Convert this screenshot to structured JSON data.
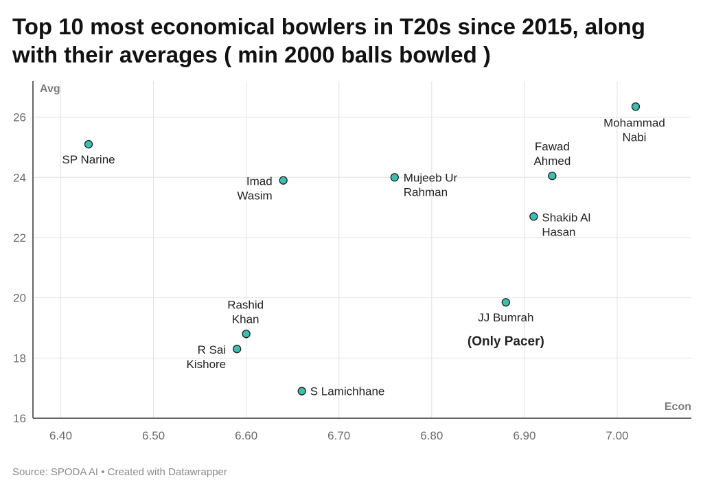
{
  "header": {
    "title": "Top 10 most economical bowlers in T20s since 2015, along with their averages ( min 2000 balls bowled )"
  },
  "footer": {
    "source": "Source: SPODA AI • Created with Datawrapper"
  },
  "chart_data": {
    "type": "scatter",
    "xlabel": "Econ",
    "ylabel": "Avg",
    "xlim": [
      6.37,
      7.08
    ],
    "ylim": [
      16,
      27.2
    ],
    "xticks": [
      "6.40",
      "6.50",
      "6.60",
      "6.70",
      "6.80",
      "6.90",
      "7.00"
    ],
    "yticks": [
      "16",
      "18",
      "20",
      "22",
      "24",
      "26"
    ],
    "grid": true,
    "marker_color": "#3cbfb0",
    "points": [
      {
        "label": "SP Narine",
        "x": 6.43,
        "y": 25.1
      },
      {
        "label": "Imad Wasim",
        "x": 6.64,
        "y": 23.9
      },
      {
        "label": "Mujeeb Ur Rahman",
        "x": 6.76,
        "y": 24.0
      },
      {
        "label": "Fawad Ahmed",
        "x": 6.93,
        "y": 24.05
      },
      {
        "label": "Shakib Al Hasan",
        "x": 6.91,
        "y": 22.7
      },
      {
        "label": "Mohammad Nabi",
        "x": 7.02,
        "y": 26.35
      },
      {
        "label": "Rashid Khan",
        "x": 6.6,
        "y": 18.8
      },
      {
        "label": "R Sai Kishore",
        "x": 6.59,
        "y": 18.3
      },
      {
        "label": "S Lamichhane",
        "x": 6.66,
        "y": 16.9
      },
      {
        "label": "JJ Bumrah",
        "x": 6.88,
        "y": 19.85
      }
    ],
    "annotations": [
      {
        "text": "(Only Pacer)",
        "x": 6.88,
        "y": 18.6
      }
    ]
  }
}
